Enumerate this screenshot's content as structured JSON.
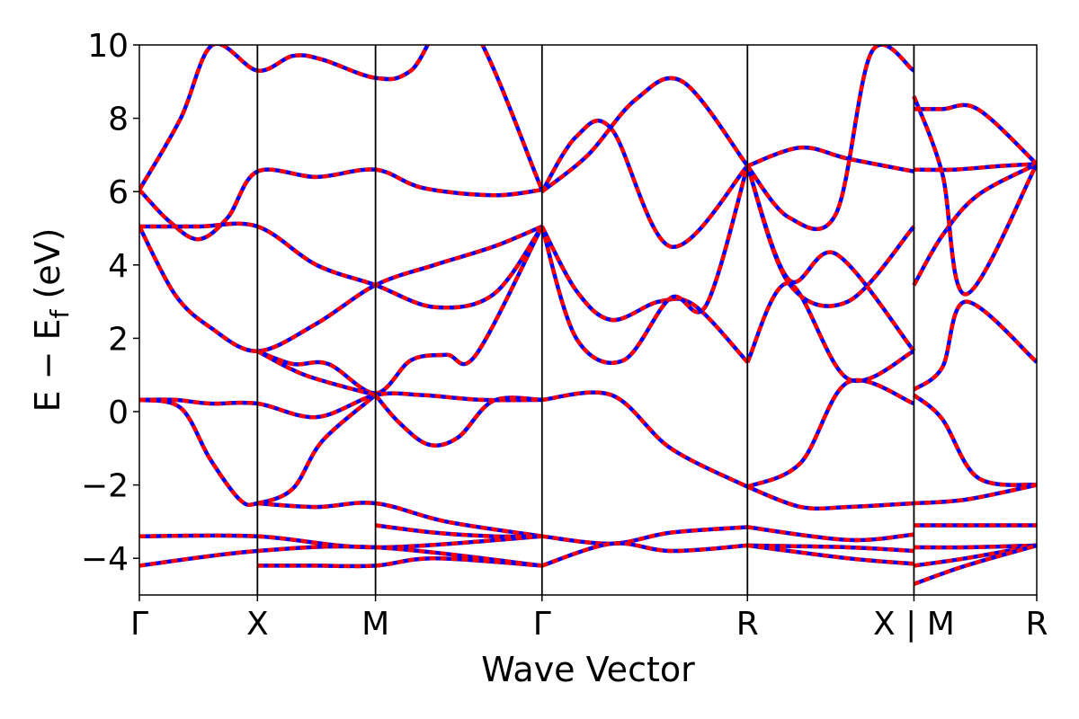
{
  "chart_data": {
    "type": "line",
    "title": "",
    "xlabel": "Wave Vector",
    "ylabel": "E − E_f (eV)",
    "ylabel_main": "E − E",
    "ylabel_sub": "f",
    "ylabel_unit": " (eV)",
    "ylim": [
      -5,
      10
    ],
    "yticks": [
      -4,
      -2,
      0,
      2,
      4,
      6,
      8,
      10
    ],
    "ytick_labels": [
      "−4",
      "−2",
      "0",
      "2",
      "4",
      "6",
      "8",
      "10"
    ],
    "xlim": [
      0,
      7.6
    ],
    "high_symmetry_points": [
      {
        "label": "Γ",
        "x": 0.0
      },
      {
        "label": "X",
        "x": 1.0
      },
      {
        "label": "M",
        "x": 2.0
      },
      {
        "label": "Γ",
        "x": 3.41
      },
      {
        "label": "R",
        "x": 5.15
      },
      {
        "label": "X | M",
        "x": 6.56
      },
      {
        "label": "R",
        "x": 7.6
      }
    ],
    "grid": false,
    "colors": {
      "band": "#ff0000",
      "overlay": "#0000ff",
      "axis": "#000000"
    },
    "series": [
      {
        "x": [
          0,
          0.35,
          0.62,
          1.0,
          1.3,
          1.55,
          2.0,
          2.3,
          2.75,
          3.41
        ],
        "values": [
          6.05,
          8.0,
          10.0,
          9.3,
          9.7,
          9.6,
          9.1,
          9.3,
          10.8,
          6.05
        ]
      },
      {
        "x": [
          0,
          0.25,
          0.5,
          0.75,
          1.0,
          1.5,
          2.0,
          2.4,
          3.0,
          3.41
        ],
        "values": [
          6.05,
          5.2,
          4.7,
          5.3,
          6.55,
          6.4,
          6.6,
          6.1,
          5.9,
          6.05
        ]
      },
      {
        "x": [
          0,
          0.5,
          1.0,
          1.5,
          2.0,
          2.5,
          3.0,
          3.41
        ],
        "values": [
          5.05,
          5.05,
          5.05,
          4.0,
          3.45,
          2.85,
          3.2,
          5.05
        ]
      },
      {
        "x": [
          0,
          0.3,
          0.6,
          1.0,
          1.5,
          2.0,
          2.5,
          3.0,
          3.41
        ],
        "values": [
          5.05,
          3.2,
          2.3,
          1.65,
          2.4,
          3.45,
          4.0,
          4.5,
          5.05
        ]
      },
      {
        "x": [
          1.0,
          1.3,
          1.6,
          2.0,
          2.3,
          2.6,
          2.85,
          3.41
        ],
        "values": [
          1.65,
          1.3,
          1.3,
          0.5,
          1.4,
          1.55,
          1.55,
          5.05
        ]
      },
      {
        "x": [
          1.0,
          1.4,
          2.0
        ],
        "values": [
          1.65,
          1.0,
          0.45
        ]
      },
      {
        "x": [
          0,
          0.3,
          0.6,
          1.0,
          1.5,
          2.0,
          2.4,
          2.9,
          3.41
        ],
        "values": [
          0.32,
          0.32,
          0.22,
          0.22,
          -0.15,
          0.45,
          0.45,
          0.32,
          0.32
        ]
      },
      {
        "x": [
          0,
          0.35,
          0.6,
          0.85,
          1.0,
          1.3,
          1.55,
          2.0
        ],
        "values": [
          0.32,
          0.1,
          -1.3,
          -2.4,
          -2.5,
          -2.1,
          -0.8,
          0.45
        ]
      },
      {
        "x": [
          2.0,
          2.2,
          2.45,
          2.7,
          3.0,
          3.41
        ],
        "values": [
          0.45,
          -0.3,
          -0.9,
          -0.7,
          0.3,
          0.32
        ]
      },
      {
        "x": [
          1.0,
          1.5,
          2.0,
          2.6,
          3.41
        ],
        "values": [
          -2.5,
          -2.6,
          -2.5,
          -3.0,
          -3.4
        ]
      },
      {
        "x": [
          0,
          1.0,
          2.0,
          3.41
        ],
        "values": [
          -3.4,
          -3.4,
          -3.7,
          -3.4
        ]
      },
      {
        "x": [
          0,
          1.0,
          2.0,
          3.41
        ],
        "values": [
          -4.2,
          -3.8,
          -3.7,
          -4.2
        ]
      },
      {
        "x": [
          1.0,
          1.5,
          2.0,
          2.5,
          3.41
        ],
        "values": [
          -4.2,
          -4.2,
          -4.2,
          -4.0,
          -4.2
        ]
      },
      {
        "x": [
          2.0,
          2.5,
          3.0,
          3.41
        ],
        "values": [
          -3.1,
          -3.3,
          -3.4,
          -3.4
        ]
      },
      {
        "x": [
          3.41,
          3.7,
          4.0,
          4.5,
          5.15
        ],
        "values": [
          6.0,
          7.5,
          7.7,
          4.5,
          6.7
        ]
      },
      {
        "x": [
          3.41,
          3.8,
          4.2,
          4.6,
          5.15
        ],
        "values": [
          6.0,
          7.0,
          8.5,
          9.0,
          6.7
        ]
      },
      {
        "x": [
          3.41,
          3.7,
          4.0,
          4.4,
          4.7,
          5.15
        ],
        "values": [
          5.05,
          3.3,
          2.5,
          3.0,
          2.9,
          1.35
        ]
      },
      {
        "x": [
          3.41,
          3.7,
          4.1,
          4.5,
          4.8,
          5.15
        ],
        "values": [
          5.05,
          2.0,
          1.4,
          3.1,
          2.9,
          6.7
        ]
      },
      {
        "x": [
          3.41,
          4.0,
          4.5,
          5.15
        ],
        "values": [
          0.32,
          0.45,
          -1.0,
          -2.05
        ]
      },
      {
        "x": [
          3.41,
          4.0,
          4.5,
          5.15
        ],
        "values": [
          -3.4,
          -3.6,
          -3.3,
          -3.15
        ]
      },
      {
        "x": [
          3.41,
          4.0,
          4.5,
          5.15
        ],
        "values": [
          -4.2,
          -3.6,
          -3.8,
          -3.65
        ]
      },
      {
        "x": [
          5.15,
          5.6,
          6.0,
          6.56
        ],
        "values": [
          6.7,
          7.2,
          6.9,
          6.55
        ]
      },
      {
        "x": [
          5.15,
          5.5,
          5.9,
          6.2,
          6.56
        ],
        "values": [
          6.7,
          5.3,
          5.4,
          9.8,
          9.3
        ]
      },
      {
        "x": [
          5.15,
          5.5,
          6.0,
          6.56
        ],
        "values": [
          6.7,
          3.5,
          3.0,
          5.05
        ]
      },
      {
        "x": [
          5.15,
          5.5,
          5.9,
          6.56
        ],
        "values": [
          6.7,
          3.6,
          4.3,
          1.65
        ]
      },
      {
        "x": [
          5.15,
          5.5,
          6.0,
          6.56
        ],
        "values": [
          1.35,
          3.5,
          0.9,
          1.65
        ]
      },
      {
        "x": [
          5.15,
          5.6,
          6.0,
          6.56
        ],
        "values": [
          -2.05,
          -1.4,
          0.8,
          0.22
        ]
      },
      {
        "x": [
          5.15,
          5.6,
          6.0,
          6.56
        ],
        "values": [
          -2.05,
          -2.6,
          -2.6,
          -2.5
        ]
      },
      {
        "x": [
          5.15,
          6.0,
          6.56
        ],
        "values": [
          -3.15,
          -3.5,
          -3.35
        ]
      },
      {
        "x": [
          5.15,
          6.0,
          6.56
        ],
        "values": [
          -3.65,
          -3.7,
          -3.8
        ]
      },
      {
        "x": [
          5.15,
          6.0,
          6.56
        ],
        "values": [
          -3.65,
          -4.0,
          -4.15
        ]
      },
      {
        "x": [
          6.56,
          6.8,
          7.1,
          7.6
        ],
        "values": [
          8.25,
          8.25,
          8.25,
          6.75
        ]
      },
      {
        "x": [
          6.56,
          6.9,
          7.3,
          7.6
        ],
        "values": [
          6.6,
          6.6,
          6.7,
          6.75
        ]
      },
      {
        "x": [
          6.56,
          6.8,
          7.1,
          7.6
        ],
        "values": [
          3.45,
          4.8,
          5.9,
          6.75
        ]
      },
      {
        "x": [
          6.56,
          6.8,
          7.0,
          7.6
        ],
        "values": [
          8.6,
          6.5,
          3.2,
          6.75
        ]
      },
      {
        "x": [
          6.56,
          6.8,
          7.0,
          7.6
        ],
        "values": [
          0.6,
          1.2,
          3.0,
          1.35
        ]
      },
      {
        "x": [
          6.56,
          6.8,
          7.1,
          7.6
        ],
        "values": [
          0.45,
          -0.2,
          -1.8,
          -2.0
        ]
      },
      {
        "x": [
          6.56,
          7.0,
          7.6
        ],
        "values": [
          -2.5,
          -2.4,
          -2.0
        ]
      },
      {
        "x": [
          6.56,
          7.0,
          7.6
        ],
        "values": [
          -3.1,
          -3.1,
          -3.1
        ]
      },
      {
        "x": [
          6.56,
          7.0,
          7.6
        ],
        "values": [
          -3.7,
          -3.7,
          -3.65
        ]
      },
      {
        "x": [
          6.56,
          7.0,
          7.6
        ],
        "values": [
          -4.2,
          -4.0,
          -3.65
        ]
      },
      {
        "x": [
          6.56,
          7.0,
          7.6
        ],
        "values": [
          -4.7,
          -4.2,
          -3.65
        ]
      }
    ]
  }
}
